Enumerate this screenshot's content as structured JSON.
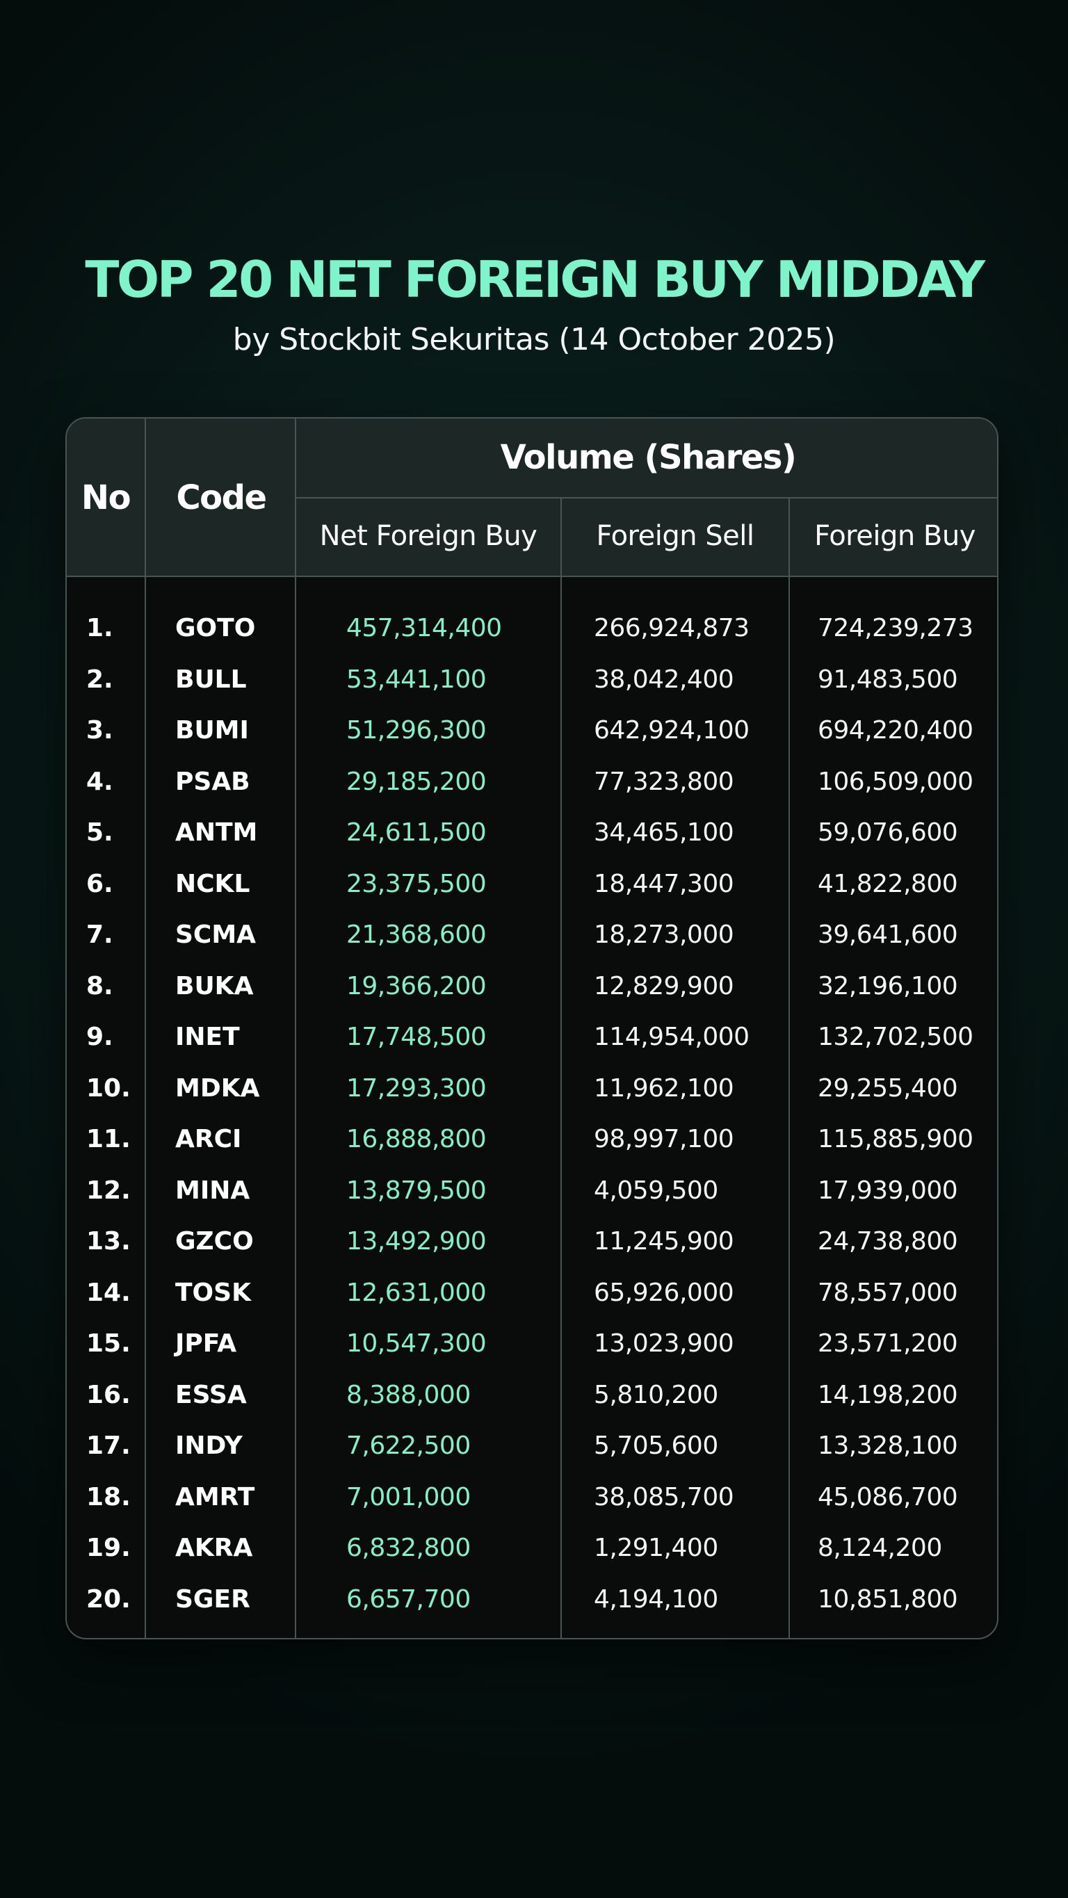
{
  "title": "TOP 20 NET FOREIGN BUY MIDDAY",
  "subtitle": "by Stockbit Sekuritas (14 October 2025)",
  "colors": {
    "accent": "#7ff3c9",
    "net_value": "#86efc5",
    "header_bg": "#1d2726",
    "table_bg": "#0a0c0c",
    "border": "#4a5452"
  },
  "table": {
    "headers": {
      "no": "No",
      "code": "Code",
      "group": "Volume (Shares)",
      "net": "Net Foreign Buy",
      "sell": "Foreign Sell",
      "buy": "Foreign Buy"
    },
    "rows": [
      {
        "no": "1.",
        "code": "GOTO",
        "net": "457,314,400",
        "sell": "266,924,873",
        "buy": "724,239,273"
      },
      {
        "no": "2.",
        "code": "BULL",
        "net": "53,441,100",
        "sell": "38,042,400",
        "buy": "91,483,500"
      },
      {
        "no": "3.",
        "code": "BUMI",
        "net": "51,296,300",
        "sell": "642,924,100",
        "buy": "694,220,400"
      },
      {
        "no": "4.",
        "code": "PSAB",
        "net": "29,185,200",
        "sell": "77,323,800",
        "buy": "106,509,000"
      },
      {
        "no": "5.",
        "code": "ANTM",
        "net": "24,611,500",
        "sell": "34,465,100",
        "buy": "59,076,600"
      },
      {
        "no": "6.",
        "code": "NCKL",
        "net": "23,375,500",
        "sell": "18,447,300",
        "buy": "41,822,800"
      },
      {
        "no": "7.",
        "code": "SCMA",
        "net": "21,368,600",
        "sell": "18,273,000",
        "buy": "39,641,600"
      },
      {
        "no": "8.",
        "code": "BUKA",
        "net": "19,366,200",
        "sell": "12,829,900",
        "buy": "32,196,100"
      },
      {
        "no": "9.",
        "code": "INET",
        "net": "17,748,500",
        "sell": "114,954,000",
        "buy": "132,702,500"
      },
      {
        "no": "10.",
        "code": "MDKA",
        "net": "17,293,300",
        "sell": "11,962,100",
        "buy": "29,255,400"
      },
      {
        "no": "11.",
        "code": "ARCI",
        "net": "16,888,800",
        "sell": "98,997,100",
        "buy": "115,885,900"
      },
      {
        "no": "12.",
        "code": "MINA",
        "net": "13,879,500",
        "sell": "4,059,500",
        "buy": "17,939,000"
      },
      {
        "no": "13.",
        "code": "GZCO",
        "net": "13,492,900",
        "sell": "11,245,900",
        "buy": "24,738,800"
      },
      {
        "no": "14.",
        "code": "TOSK",
        "net": "12,631,000",
        "sell": "65,926,000",
        "buy": "78,557,000"
      },
      {
        "no": "15.",
        "code": "JPFA",
        "net": "10,547,300",
        "sell": "13,023,900",
        "buy": "23,571,200"
      },
      {
        "no": "16.",
        "code": "ESSA",
        "net": "8,388,000",
        "sell": "5,810,200",
        "buy": "14,198,200"
      },
      {
        "no": "17.",
        "code": "INDY",
        "net": "7,622,500",
        "sell": "5,705,600",
        "buy": "13,328,100"
      },
      {
        "no": "18.",
        "code": "AMRT",
        "net": "7,001,000",
        "sell": "38,085,700",
        "buy": "45,086,700"
      },
      {
        "no": "19.",
        "code": "AKRA",
        "net": "6,832,800",
        "sell": "1,291,400",
        "buy": "8,124,200"
      },
      {
        "no": "20.",
        "code": "SGER",
        "net": "6,657,700",
        "sell": "4,194,100",
        "buy": "10,851,800"
      }
    ]
  }
}
